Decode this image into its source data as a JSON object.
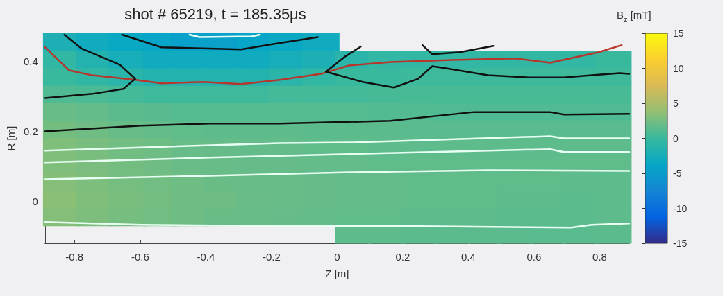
{
  "chart_data": {
    "type": "heatmap",
    "title": "shot # 65219, t = 185.35μs",
    "xlabel": "Z [m]",
    "ylabel": "R [m]",
    "clabel": "B$_{z}$ [mT]",
    "xlim": [
      -0.89,
      0.89
    ],
    "xticks": [
      -0.8,
      -0.6,
      -0.4,
      -0.2,
      0,
      0.2,
      0.4,
      0.6,
      0.8
    ],
    "ylim": [
      -0.12,
      0.48
    ],
    "yticks": [
      0,
      0.2,
      0.4
    ],
    "clim": [
      -15,
      15
    ],
    "cticks": [
      -15,
      -10,
      -5,
      0,
      5,
      10,
      15
    ],
    "grid": false,
    "x": [
      -0.84,
      -0.74,
      -0.64,
      -0.54,
      -0.45,
      -0.35,
      -0.25,
      -0.15,
      -0.05,
      0.05,
      0.15,
      0.25,
      0.35,
      0.45,
      0.54,
      0.64,
      0.74,
      0.84
    ],
    "y": [
      0.455,
      0.405,
      0.355,
      0.305,
      0.255,
      0.205,
      0.155,
      0.105,
      0.055,
      0.005,
      -0.045,
      -0.095
    ],
    "cells": [
      [
        -2,
        -3,
        -3.5,
        -4,
        -4.5,
        -4.5,
        -4,
        -3.5,
        -3,
        null,
        null,
        null,
        null,
        null,
        null,
        null,
        null,
        null
      ],
      [
        -0.5,
        -1.5,
        -2.5,
        -3,
        -3,
        -3,
        -3,
        -2.5,
        -2,
        -1,
        -0.5,
        -0.5,
        -0.5,
        -0.5,
        -0.5,
        -0.5,
        -0.5,
        0
      ],
      [
        0,
        -0.5,
        -1,
        -1.5,
        -1.5,
        -1.5,
        -1.5,
        -1,
        -0.5,
        0,
        0,
        0.2,
        0.3,
        0.3,
        0.3,
        0.3,
        0.3,
        0.3
      ],
      [
        1,
        0.8,
        0.5,
        0.3,
        0.3,
        0.3,
        0.3,
        0.5,
        0.5,
        0.5,
        0.6,
        0.7,
        0.7,
        0.7,
        0.7,
        0.7,
        0.7,
        0.7
      ],
      [
        2,
        1.8,
        1.5,
        1.3,
        1.2,
        1.2,
        1.2,
        1.2,
        1.2,
        1.2,
        1.1,
        1.1,
        1,
        1,
        1,
        1,
        1,
        1
      ],
      [
        2.5,
        2.3,
        2,
        1.8,
        1.7,
        1.6,
        1.6,
        1.6,
        1.5,
        1.5,
        1.5,
        1.4,
        1.4,
        1.4,
        1.4,
        1.4,
        1.4,
        1.4
      ],
      [
        3,
        2.7,
        2.4,
        2.2,
        2,
        1.9,
        1.8,
        1.8,
        1.7,
        1.7,
        1.6,
        1.6,
        1.6,
        1.6,
        1.6,
        1.6,
        1.6,
        1.6
      ],
      [
        3,
        2.8,
        2.5,
        2.3,
        2.1,
        2,
        1.9,
        1.9,
        1.8,
        1.8,
        1.7,
        1.7,
        1.7,
        1.7,
        1.7,
        1.7,
        1.7,
        1.7
      ],
      [
        3.2,
        2.9,
        2.6,
        2.4,
        2.2,
        2.1,
        2,
        2,
        1.9,
        1.8,
        1.8,
        1.7,
        1.7,
        1.7,
        1.7,
        1.7,
        1.6,
        1.6
      ],
      [
        3.5,
        3,
        2.7,
        2.5,
        2.3,
        2.2,
        2.1,
        2,
        1.9,
        1.8,
        1.8,
        1.7,
        1.7,
        1.7,
        1.6,
        1.6,
        1.5,
        1.6
      ],
      [
        3.2,
        2.9,
        2.6,
        2.4,
        2.2,
        2.1,
        2,
        1.9,
        1.8,
        1.7,
        1.7,
        1.6,
        1.6,
        1.6,
        1.5,
        1.5,
        1.5,
        1.6
      ],
      [
        null,
        null,
        null,
        null,
        null,
        null,
        null,
        null,
        null,
        1.6,
        1.6,
        1.5,
        1.5,
        1.5,
        1.5,
        1.4,
        1.4,
        1.5
      ]
    ],
    "series": [
      {
        "type": "line",
        "color": "#b8352b",
        "x": [
          -0.89,
          -0.816,
          -0.746,
          -0.613,
          -0.535,
          -0.408,
          -0.292,
          -0.175,
          -0.049,
          0.036,
          0.163,
          0.353,
          0.543,
          0.649,
          0.797,
          0.867
        ],
        "values": [
          0.44,
          0.374,
          0.36,
          0.347,
          0.337,
          0.341,
          0.335,
          0.347,
          0.364,
          0.388,
          0.398,
          0.404,
          0.408,
          0.396,
          0.426,
          0.446
        ]
      },
      {
        "type": "line",
        "color": "#111111",
        "x": [
          -0.831,
          -0.778,
          -0.662,
          -0.615,
          -0.651,
          -0.746,
          -0.89
        ],
        "values": [
          0.476,
          0.436,
          0.39,
          0.35,
          0.321,
          0.307,
          0.295
        ]
      },
      {
        "type": "line",
        "color": "#111111",
        "x": [
          -0.655,
          -0.535,
          -0.292,
          -0.197,
          -0.059
        ],
        "values": [
          0.476,
          0.44,
          0.434,
          0.449,
          0.469
        ]
      },
      {
        "type": "line",
        "color": "#111111",
        "x": [
          0.072,
          0.025,
          -0.034,
          0.078,
          0.173,
          0.247,
          0.29,
          0.332,
          0.459,
          0.586,
          0.691,
          0.776,
          0.86,
          0.89
        ],
        "values": [
          0.442,
          0.414,
          0.37,
          0.341,
          0.325,
          0.35,
          0.386,
          0.38,
          0.36,
          0.354,
          0.354,
          0.36,
          0.366,
          0.364
        ]
      },
      {
        "type": "line",
        "color": "#111111",
        "x": [
          0.26,
          0.29,
          0.374,
          0.476
        ],
        "values": [
          0.446,
          0.42,
          0.426,
          0.444
        ]
      },
      {
        "type": "line",
        "color": "#111111",
        "x": [
          -0.89,
          -0.598,
          -0.387,
          -0.175,
          0.163,
          0.416,
          0.649,
          0.691,
          0.89
        ],
        "values": [
          0.2,
          0.216,
          0.222,
          0.222,
          0.23,
          0.255,
          0.255,
          0.248,
          0.25
        ]
      },
      {
        "type": "line",
        "color": "#e8fff4",
        "x": [
          -0.45,
          -0.419,
          -0.26,
          -0.235
        ],
        "values": [
          0.476,
          0.469,
          0.471,
          0.476
        ]
      },
      {
        "type": "line",
        "color": "#e8fff4",
        "x": [
          -0.89,
          -0.598,
          -0.175,
          0.036,
          0.649,
          0.691,
          0.89
        ],
        "values": [
          0.145,
          0.154,
          0.166,
          0.168,
          0.186,
          0.18,
          0.18
        ]
      },
      {
        "type": "line",
        "color": "#e8fff4",
        "x": [
          -0.89,
          -0.387,
          0.036,
          0.649,
          0.691,
          0.89
        ],
        "values": [
          0.111,
          0.125,
          0.135,
          0.149,
          0.141,
          0.141
        ]
      },
      {
        "type": "line",
        "color": "#e8fff4",
        "x": [
          -0.89,
          -0.387,
          0.036,
          0.459,
          0.89
        ],
        "values": [
          0.063,
          0.073,
          0.083,
          0.089,
          0.087
        ]
      },
      {
        "type": "line",
        "color": "#e8fff4",
        "x": [
          -0.89,
          -0.598,
          -0.175,
          0.247,
          0.712,
          0.776,
          0.89
        ],
        "values": [
          -0.059,
          -0.067,
          -0.071,
          -0.071,
          -0.075,
          -0.067,
          -0.063
        ]
      }
    ]
  }
}
